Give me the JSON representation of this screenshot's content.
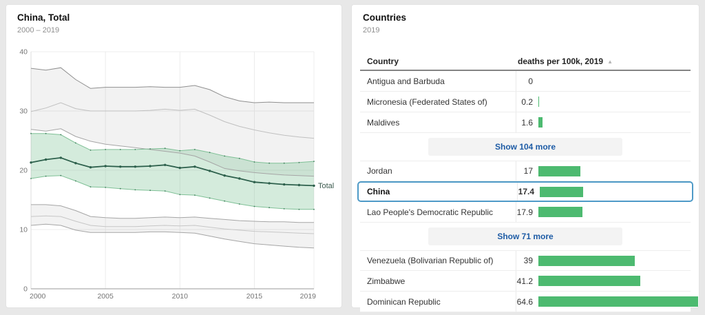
{
  "left_panel": {
    "title": "China, Total",
    "subtitle": "2000 – 2019"
  },
  "right_panel": {
    "title": "Countries",
    "subtitle": "2019",
    "table": {
      "columns": [
        "Country",
        "deaths per 100k, 2019"
      ],
      "sort_icon": "▲",
      "bar_color": "#4dba70",
      "bar_scale_max": 64.6,
      "items": [
        {
          "type": "row",
          "country": "Antigua and Barbuda",
          "value": "0",
          "bar": 0
        },
        {
          "type": "row",
          "country": "Micronesia (Federated States of)",
          "value": "0.2",
          "bar": 0.2
        },
        {
          "type": "row",
          "country": "Maldives",
          "value": "1.6",
          "bar": 1.6
        },
        {
          "type": "button",
          "label": "Show 104 more"
        },
        {
          "type": "row",
          "country": "Jordan",
          "value": "17",
          "bar": 17
        },
        {
          "type": "row",
          "country": "China",
          "value": "17.4",
          "bar": 17.4,
          "selected": true
        },
        {
          "type": "row",
          "country": "Lao People's Democratic Republic",
          "value": "17.9",
          "bar": 17.9
        },
        {
          "type": "button",
          "label": "Show 71 more"
        },
        {
          "type": "row",
          "country": "Venezuela (Bolivarian Republic of)",
          "value": "39",
          "bar": 39
        },
        {
          "type": "row",
          "country": "Zimbabwe",
          "value": "41.2",
          "bar": 41.2
        },
        {
          "type": "row",
          "country": "Dominican Republic",
          "value": "64.6",
          "bar": 64.6
        }
      ]
    }
  },
  "chart_data": {
    "type": "line",
    "title": "China, Total",
    "subtitle": "2000 – 2019",
    "ylabel": "deaths per 100k",
    "ylim": [
      0,
      40
    ],
    "grid": true,
    "x": [
      2000,
      2001,
      2002,
      2003,
      2004,
      2005,
      2006,
      2007,
      2008,
      2009,
      2010,
      2011,
      2012,
      2013,
      2014,
      2015,
      2016,
      2017,
      2018,
      2019
    ],
    "xticks": [
      2000,
      2005,
      2010,
      2015,
      2019
    ],
    "yticks": [
      0,
      10,
      20,
      30,
      40
    ],
    "series": [
      {
        "name": "upper-gray-top",
        "color": "#8f8f8f",
        "width": 1,
        "values": [
          37.2,
          36.9,
          37.3,
          35.3,
          33.8,
          34.0,
          34.0,
          34.0,
          34.1,
          34.0,
          34.0,
          34.3,
          33.6,
          32.4,
          31.7,
          31.4,
          31.5,
          31.4,
          31.4,
          31.4
        ]
      },
      {
        "name": "upper-gray-mid",
        "color": "#c0c0c0",
        "width": 1,
        "values": [
          29.9,
          30.5,
          31.4,
          30.4,
          30.0,
          30.0,
          30.0,
          30.0,
          30.1,
          30.3,
          30.1,
          30.3,
          29.3,
          28.2,
          27.4,
          26.8,
          26.3,
          25.9,
          25.6,
          25.4
        ]
      },
      {
        "name": "upper-gray-low",
        "color": "#a5a5a5",
        "width": 1,
        "values": [
          26.9,
          26.6,
          27.0,
          25.7,
          24.9,
          24.4,
          24.1,
          23.8,
          23.5,
          23.2,
          22.9,
          22.4,
          21.4,
          20.3,
          19.9,
          19.6,
          19.4,
          19.2,
          19.1,
          19.0
        ]
      },
      {
        "name": "lower-gray-top",
        "color": "#a5a5a5",
        "width": 1,
        "values": [
          14.2,
          14.2,
          14.0,
          13.2,
          12.2,
          12.0,
          11.9,
          11.9,
          12.0,
          12.1,
          12.0,
          12.1,
          11.9,
          11.7,
          11.5,
          11.4,
          11.3,
          11.3,
          11.2,
          11.2
        ]
      },
      {
        "name": "lower-gray-mid",
        "color": "#c6c6c6",
        "width": 1,
        "values": [
          12.2,
          12.3,
          12.2,
          11.4,
          10.7,
          10.5,
          10.5,
          10.5,
          10.6,
          10.7,
          10.6,
          10.7,
          10.4,
          10.1,
          9.9,
          9.7,
          9.6,
          9.5,
          9.4,
          9.3
        ]
      },
      {
        "name": "lower-gray-low",
        "color": "#a5a5a5",
        "width": 1,
        "values": [
          10.7,
          10.9,
          10.7,
          9.9,
          9.5,
          9.5,
          9.5,
          9.5,
          9.6,
          9.6,
          9.5,
          9.4,
          8.9,
          8.4,
          8.0,
          7.6,
          7.4,
          7.2,
          7.0,
          6.9
        ]
      },
      {
        "name": "total-ci-upper",
        "color": "#7fc096",
        "width": 1,
        "marker": 0.9,
        "marker_color": "#3f7d5c",
        "values": [
          26.2,
          26.2,
          26.0,
          24.6,
          23.4,
          23.5,
          23.5,
          23.5,
          23.6,
          23.7,
          23.3,
          23.5,
          23.0,
          22.4,
          22.0,
          21.4,
          21.2,
          21.2,
          21.3,
          21.5
        ]
      },
      {
        "name": "total-ci-lower",
        "color": "#7fc096",
        "width": 1,
        "marker": 0.9,
        "marker_color": "#3f7d5c",
        "values": [
          18.6,
          19.0,
          19.1,
          18.2,
          17.2,
          17.1,
          16.9,
          16.7,
          16.6,
          16.5,
          15.9,
          15.8,
          15.3,
          14.8,
          14.3,
          13.9,
          13.7,
          13.5,
          13.4,
          13.4
        ]
      },
      {
        "name": "Total",
        "label": "Total",
        "color": "#2d604c",
        "width": 1.8,
        "marker": 1.7,
        "values": [
          21.3,
          21.8,
          22.1,
          21.2,
          20.5,
          20.7,
          20.6,
          20.6,
          20.7,
          20.9,
          20.4,
          20.6,
          19.9,
          19.1,
          18.6,
          18.0,
          17.8,
          17.6,
          17.5,
          17.4
        ]
      }
    ],
    "bands": [
      {
        "upper": "upper-gray-top",
        "lower": "upper-gray-low",
        "fill": "rgba(0,0,0,0.05)"
      },
      {
        "upper": "lower-gray-top",
        "lower": "lower-gray-low",
        "fill": "rgba(0,0,0,0.05)"
      },
      {
        "upper": "total-ci-upper",
        "lower": "total-ci-lower",
        "fill": "rgba(111,189,138,0.30)"
      }
    ],
    "end_label_color": "#39584c"
  }
}
